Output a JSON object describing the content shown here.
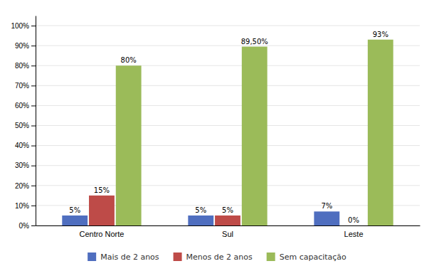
{
  "chart_data": {
    "type": "bar",
    "categories": [
      "Centro Norte",
      "Sul",
      "Leste"
    ],
    "series": [
      {
        "name": "Mais de 2 anos",
        "color": "#4F6EBF",
        "values": [
          5,
          5,
          7
        ],
        "value_labels": [
          "5%",
          "5%",
          "7%"
        ]
      },
      {
        "name": "Menos de 2 anos",
        "color": "#BE4B48",
        "values": [
          15,
          5,
          0
        ],
        "value_labels": [
          "15%",
          "5%",
          "0%"
        ]
      },
      {
        "name": "Sem capacitação",
        "color": "#9BBB59",
        "values": [
          80,
          89.5,
          93
        ],
        "value_labels": [
          "80%",
          "89,50%",
          "93%"
        ]
      }
    ],
    "ylim": [
      0,
      105
    ],
    "yticks": [
      {
        "value": 0,
        "label": "0%"
      },
      {
        "value": 10,
        "label": "10%"
      },
      {
        "value": 20,
        "label": "20%"
      },
      {
        "value": 30,
        "label": "30%"
      },
      {
        "value": 40,
        "label": "40%"
      },
      {
        "value": 50,
        "label": "50%"
      },
      {
        "value": 60,
        "label": "60%"
      },
      {
        "value": 70,
        "label": "70%"
      },
      {
        "value": 80,
        "label": "80%"
      },
      {
        "value": 90,
        "label": "90%"
      },
      {
        "value": 100,
        "label": "100%"
      }
    ],
    "grid": true,
    "data_labels": true,
    "legend": "bottom"
  }
}
